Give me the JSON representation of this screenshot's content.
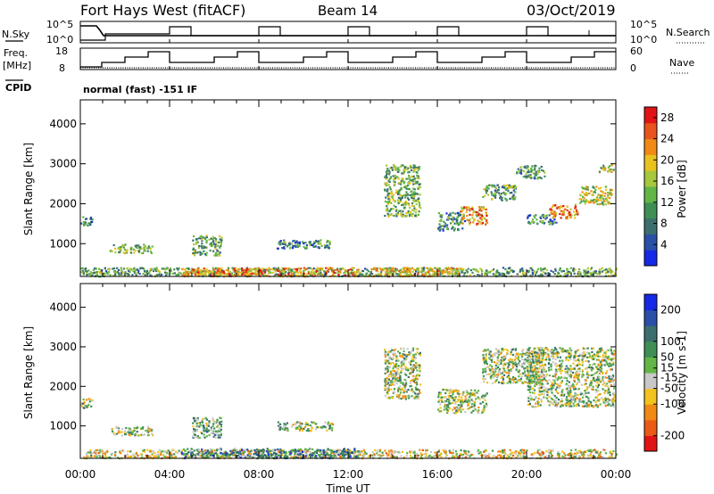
{
  "header": {
    "station": "Fort Hays West (fitACF)",
    "beam": "Beam 14",
    "date": "03/Oct/2019"
  },
  "side_labels": {
    "nsky": "N.Sky",
    "nsearch": "N.Search",
    "freq": "Freq.",
    "freq_unit": "[MHz]",
    "nave": "Nave",
    "cpid": "CPID"
  },
  "mode_text": "normal (fast) -151 IF",
  "noise_axis": {
    "left": [
      "10^5",
      "10^0"
    ],
    "right": [
      "10^5",
      "10^0"
    ]
  },
  "freq_axis": {
    "left": [
      "18",
      "8"
    ],
    "right": [
      "60",
      "0"
    ]
  },
  "colors": {
    "power_scale": [
      "#1428e6",
      "#2a4fa8",
      "#3c6e6e",
      "#3f8f55",
      "#62b646",
      "#a7c73c",
      "#e8c21e",
      "#f08a14",
      "#e8541c",
      "#e01414"
    ],
    "velocity_scale": [
      "#1428e6",
      "#2a4fa8",
      "#3c6e6e",
      "#3f8f55",
      "#62b646",
      "#c8c8c8",
      "#f2c21e",
      "#f08a14",
      "#ea5a14",
      "#e01414"
    ]
  },
  "chart_data": [
    {
      "type": "heatmap",
      "title": "Power",
      "xlabel": "Time UT",
      "ylabel": "Slant Range [km]",
      "xlim": [
        0,
        24
      ],
      "ylim": [
        180,
        4600
      ],
      "x_ticks": [
        "00:00",
        "04:00",
        "08:00",
        "12:00",
        "16:00",
        "20:00",
        "00:00"
      ],
      "y_ticks": [
        1000,
        2000,
        3000,
        4000
      ],
      "colorbar": {
        "label": "Power [dB]",
        "ticks": [
          4,
          8,
          12,
          16,
          20,
          24,
          28
        ],
        "range": [
          0,
          30
        ]
      },
      "scatter_regions": [
        {
          "t0": 0.0,
          "t1": 0.5,
          "r0": 1450,
          "r1": 1720,
          "level": 0.3
        },
        {
          "t0": 1.3,
          "t1": 3.2,
          "r0": 780,
          "r1": 1000,
          "level": 0.45
        },
        {
          "t0": 5.0,
          "t1": 6.3,
          "r0": 720,
          "r1": 1230,
          "level": 0.4
        },
        {
          "t0": 8.8,
          "t1": 11.3,
          "r0": 900,
          "r1": 1120,
          "level": 0.3
        },
        {
          "t0": 13.6,
          "t1": 15.2,
          "r0": 1700,
          "r1": 3000,
          "level": 0.45
        },
        {
          "t0": 16.0,
          "t1": 17.2,
          "r0": 1350,
          "r1": 1800,
          "level": 0.3
        },
        {
          "t0": 17.0,
          "t1": 18.2,
          "r0": 1500,
          "r1": 1950,
          "level": 0.7
        },
        {
          "t0": 18.0,
          "t1": 19.5,
          "r0": 2100,
          "r1": 2500,
          "level": 0.4
        },
        {
          "t0": 19.5,
          "t1": 20.8,
          "r0": 2650,
          "r1": 2980,
          "level": 0.35
        },
        {
          "t0": 20.0,
          "t1": 21.3,
          "r0": 1500,
          "r1": 1750,
          "level": 0.3
        },
        {
          "t0": 21.0,
          "t1": 22.3,
          "r0": 1650,
          "r1": 2000,
          "level": 0.75
        },
        {
          "t0": 22.3,
          "t1": 23.8,
          "r0": 2000,
          "r1": 2450,
          "level": 0.55
        },
        {
          "t0": 23.2,
          "t1": 23.9,
          "r0": 2800,
          "r1": 3000,
          "level": 0.55
        },
        {
          "t0": 0.0,
          "t1": 24.0,
          "r0": 200,
          "r1": 420,
          "level": 0.4
        },
        {
          "t0": 4.5,
          "t1": 12.5,
          "r0": 200,
          "r1": 420,
          "level": 0.75
        },
        {
          "t0": 13.0,
          "t1": 17.0,
          "r0": 200,
          "r1": 420,
          "level": 0.65
        }
      ]
    },
    {
      "type": "heatmap",
      "title": "Velocity",
      "xlabel": "Time UT",
      "ylabel": "Slant Range [km]",
      "xlim": [
        0,
        24
      ],
      "ylim": [
        180,
        4600
      ],
      "x_ticks": [
        "00:00",
        "04:00",
        "08:00",
        "12:00",
        "16:00",
        "20:00",
        "00:00"
      ],
      "y_ticks": [
        1000,
        2000,
        3000,
        4000
      ],
      "colorbar": {
        "label": "Velocity [m s-1]",
        "ticks": [
          200,
          100,
          50,
          15,
          -15,
          -50,
          -100,
          -200
        ],
        "range": [
          -250,
          250
        ]
      },
      "scatter_regions": [
        {
          "t0": 0.0,
          "t1": 0.5,
          "r0": 1450,
          "r1": 1720,
          "level": 0.5
        },
        {
          "t0": 1.3,
          "t1": 3.2,
          "r0": 780,
          "r1": 1000,
          "level": 0.5
        },
        {
          "t0": 5.0,
          "t1": 6.3,
          "r0": 720,
          "r1": 1230,
          "level": 0.4
        },
        {
          "t0": 8.8,
          "t1": 11.3,
          "r0": 900,
          "r1": 1120,
          "level": 0.5
        },
        {
          "t0": 13.6,
          "t1": 15.2,
          "r0": 1700,
          "r1": 3000,
          "level": 0.5
        },
        {
          "t0": 16.0,
          "t1": 18.2,
          "r0": 1350,
          "r1": 1950,
          "level": 0.5
        },
        {
          "t0": 18.0,
          "t1": 20.8,
          "r0": 2100,
          "r1": 2980,
          "level": 0.5
        },
        {
          "t0": 20.0,
          "t1": 23.9,
          "r0": 1500,
          "r1": 3000,
          "level": 0.5
        },
        {
          "t0": 0.0,
          "t1": 24.0,
          "r0": 200,
          "r1": 420,
          "level": 0.6
        },
        {
          "t0": 4.5,
          "t1": 12.5,
          "r0": 200,
          "r1": 450,
          "level": 0.33
        }
      ]
    }
  ]
}
